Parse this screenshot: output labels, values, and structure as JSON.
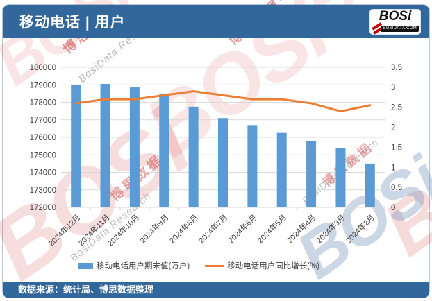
{
  "header": {
    "title": "移动电话 | 用户",
    "logo": {
      "brand": "BOSi",
      "domain": "BOSIDATA.COM"
    }
  },
  "footer": {
    "source": "数据来源：统计局、博思数据整理"
  },
  "watermarks": {
    "logo": "BOSi",
    "cn": "博思数据",
    "en": "BosiData Research"
  },
  "colors": {
    "header_bg": "#31679B",
    "footer_bg": "#31679B",
    "bar": "#5B9BD5",
    "line": "#ED7D31",
    "grid": "#D9D9D9",
    "axis_text": "#404040",
    "logo_red": "#C00000"
  },
  "chart_data": {
    "type": "bar",
    "title": "移动电话 | 用户",
    "categories": [
      "2024年12月",
      "2024年11月",
      "2024年10月",
      "2024年9月",
      "2024年8月",
      "2024年7月",
      "2024年6月",
      "2024年5月",
      "2024年4月",
      "2024年3月",
      "2024年2月"
    ],
    "series": [
      {
        "name": "移动电话用户期末值(万户)",
        "type": "bar",
        "axis": "left",
        "color": "#5B9BD5",
        "values": [
          179000,
          179050,
          178850,
          178500,
          177750,
          177100,
          176700,
          176250,
          175800,
          175400,
          174500
        ]
      },
      {
        "name": "移动电话用户同比增长(%)",
        "type": "line",
        "axis": "right",
        "color": "#ED7D31",
        "values": [
          2.6,
          2.7,
          2.7,
          2.8,
          2.9,
          2.8,
          2.7,
          2.7,
          2.6,
          2.4,
          2.55
        ]
      }
    ],
    "left_axis": {
      "min": 172000,
      "max": 180000,
      "step": 1000,
      "ticks": [
        "180000",
        "179000",
        "178000",
        "177000",
        "176000",
        "175000",
        "174000",
        "173000",
        "172000"
      ]
    },
    "right_axis": {
      "min": 0,
      "max": 3.5,
      "step": 0.5,
      "ticks": [
        "3.5",
        "3",
        "2.5",
        "2",
        "1.5",
        "1",
        "0.5",
        "0"
      ]
    },
    "grid": true,
    "legend_position": "bottom"
  }
}
